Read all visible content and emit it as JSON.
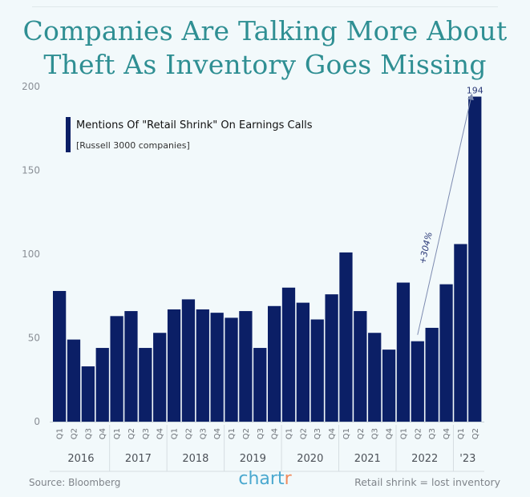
{
  "title": "Companies Are Talking More About Theft As Inventory Goes Missing",
  "footer": {
    "source": "Source: Bloomberg",
    "brand_main": "chart",
    "brand_accent": "r",
    "note": "Retail shrink = lost inventory"
  },
  "colors": {
    "bar": "#0b1f66",
    "title": "#2f8f93",
    "background": "#f2f9fb",
    "annotation": "#2b3a78"
  },
  "chart_data": {
    "type": "bar",
    "title": "Companies Are Talking More About Theft As Inventory Goes Missing",
    "legend": {
      "label": "Mentions Of \"Retail Shrink\" On Earnings Calls",
      "sublabel": "[Russell 3000 companies]",
      "placement": "top-left"
    },
    "y_ticks": [
      0,
      50,
      100,
      150,
      200
    ],
    "ylim": [
      0,
      200
    ],
    "grid": false,
    "categories": [
      "Q1",
      "Q2",
      "Q3",
      "Q4",
      "Q1",
      "Q2",
      "Q3",
      "Q4",
      "Q1",
      "Q2",
      "Q3",
      "Q4",
      "Q1",
      "Q2",
      "Q3",
      "Q4",
      "Q1",
      "Q2",
      "Q3",
      "Q4",
      "Q1",
      "Q2",
      "Q3",
      "Q4",
      "Q1",
      "Q2",
      "Q3",
      "Q4",
      "Q1",
      "Q2"
    ],
    "years": [
      "2016",
      "2017",
      "2018",
      "2019",
      "2020",
      "2021",
      "2022",
      "'23"
    ],
    "values": [
      78,
      49,
      33,
      44,
      63,
      66,
      44,
      53,
      67,
      73,
      67,
      65,
      62,
      66,
      44,
      69,
      80,
      71,
      61,
      76,
      101,
      66,
      53,
      43,
      83,
      48,
      56,
      82,
      106,
      194
    ],
    "top_value_label": "194",
    "annotation": {
      "text": "+304%",
      "from_index": 25,
      "to_index": 29
    }
  }
}
